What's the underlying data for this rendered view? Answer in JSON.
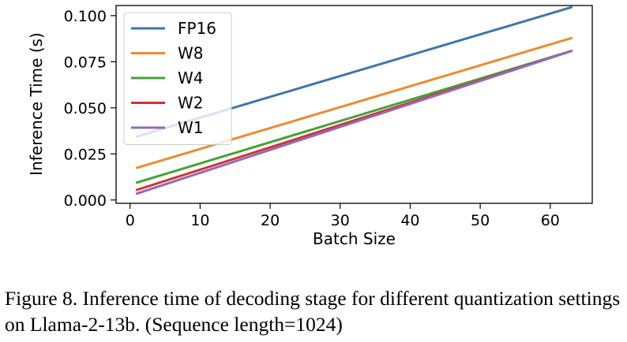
{
  "chart_data": {
    "type": "line",
    "title": "",
    "xlabel": "Batch Size",
    "ylabel": "Inference Time (s)",
    "xlim": [
      -2,
      66
    ],
    "ylim": [
      -0.0018,
      0.1055
    ],
    "xticks": [
      0,
      10,
      20,
      30,
      40,
      50,
      60
    ],
    "xtick_labels": [
      "0",
      "10",
      "20",
      "30",
      "40",
      "50",
      "60"
    ],
    "yticks": [
      0.0,
      0.025,
      0.05,
      0.075,
      0.1
    ],
    "ytick_labels": [
      "0.000",
      "0.025",
      "0.050",
      "0.075",
      "0.100"
    ],
    "legend_position": "top-left",
    "x": [
      1,
      63
    ],
    "series": [
      {
        "name": "FP16",
        "color": "#3f76ab",
        "values": [
          0.0345,
          0.1045
        ]
      },
      {
        "name": "W8",
        "color": "#ef8a2e",
        "values": [
          0.0175,
          0.0878
        ]
      },
      {
        "name": "W4",
        "color": "#45a23a",
        "values": [
          0.0095,
          0.0808
        ]
      },
      {
        "name": "W2",
        "color": "#cc3535",
        "values": [
          0.0055,
          0.0808
        ]
      },
      {
        "name": "W1",
        "color": "#9469bd",
        "values": [
          0.0035,
          0.0808
        ]
      }
    ]
  },
  "caption": "Figure 8. Inference time of decoding stage for different quantization settings on Llama-2-13b. (Sequence length=1024)"
}
